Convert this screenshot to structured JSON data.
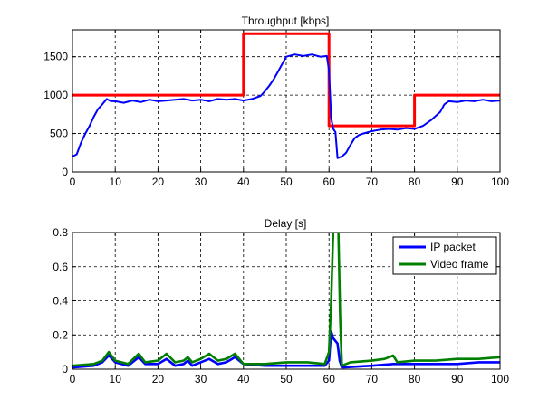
{
  "chart_data": [
    {
      "type": "line",
      "title": "Throughput [kbps]",
      "xlabel": "",
      "ylabel": "",
      "xlim": [
        0,
        100
      ],
      "ylim": [
        0,
        1850
      ],
      "xticks": [
        0,
        10,
        20,
        30,
        40,
        50,
        60,
        70,
        80,
        90,
        100
      ],
      "yticks": [
        0,
        500,
        1000,
        1500
      ],
      "grid": true,
      "legend": "none",
      "series": [
        {
          "color": "#ff0000",
          "style": "step",
          "x": [
            0,
            40,
            40,
            60,
            60,
            80,
            80,
            100
          ],
          "y": [
            1000,
            1000,
            1800,
            1800,
            600,
            600,
            1000,
            1000
          ]
        },
        {
          "color": "#0000ff",
          "style": "line",
          "x": [
            0,
            1,
            2,
            3,
            4,
            5,
            6,
            7,
            8,
            9,
            10,
            12,
            14,
            16,
            18,
            20,
            22,
            24,
            26,
            28,
            30,
            32,
            34,
            36,
            38,
            40,
            42,
            44,
            45,
            46,
            47,
            48,
            49,
            50,
            52,
            54,
            56,
            58,
            59.5,
            60,
            60.5,
            61,
            61.5,
            62,
            63,
            64,
            65,
            66,
            67,
            68,
            70,
            72,
            74,
            76,
            78,
            80,
            82,
            84,
            85,
            86,
            87,
            88,
            90,
            92,
            94,
            96,
            98,
            100
          ],
          "y": [
            200,
            230,
            380,
            500,
            600,
            720,
            820,
            880,
            950,
            920,
            920,
            900,
            930,
            910,
            940,
            920,
            930,
            940,
            950,
            930,
            940,
            920,
            950,
            940,
            950,
            930,
            950,
            990,
            1050,
            1120,
            1200,
            1300,
            1400,
            1500,
            1530,
            1510,
            1530,
            1500,
            1510,
            1320,
            700,
            560,
            520,
            180,
            200,
            250,
            350,
            440,
            480,
            500,
            530,
            550,
            560,
            550,
            570,
            560,
            600,
            680,
            730,
            780,
            880,
            920,
            910,
            930,
            920,
            940,
            920,
            930
          ]
        }
      ]
    },
    {
      "type": "line",
      "title": "Delay [s]",
      "xlabel": "",
      "ylabel": "",
      "xlim": [
        0,
        100
      ],
      "ylim": [
        0,
        0.8
      ],
      "xticks": [
        0,
        10,
        20,
        30,
        40,
        50,
        60,
        70,
        80,
        90,
        100
      ],
      "yticks": [
        0,
        0.2,
        0.4,
        0.6,
        0.8
      ],
      "grid": true,
      "legend": "top-right",
      "series": [
        {
          "name": "IP packet",
          "color": "#0000ff",
          "x": [
            0,
            5,
            7,
            8.5,
            10,
            13,
            15.5,
            17,
            20,
            22,
            24,
            26,
            27,
            28,
            30,
            32,
            34,
            36,
            38,
            40,
            45,
            50,
            55,
            59,
            60,
            60.5,
            61,
            62,
            62.5,
            63,
            70,
            75,
            80,
            90,
            95,
            100
          ],
          "y": [
            0.01,
            0.02,
            0.04,
            0.08,
            0.04,
            0.02,
            0.07,
            0.03,
            0.03,
            0.06,
            0.02,
            0.03,
            0.05,
            0.02,
            0.04,
            0.06,
            0.03,
            0.04,
            0.07,
            0.03,
            0.02,
            0.02,
            0.02,
            0.02,
            0.05,
            0.22,
            0.18,
            0.15,
            0.05,
            0.01,
            0.02,
            0.03,
            0.03,
            0.03,
            0.04,
            0.04
          ]
        },
        {
          "name": "Video frame",
          "color": "#008000",
          "x": [
            0,
            5,
            7,
            8.5,
            10,
            13,
            15.5,
            17,
            20,
            22,
            24,
            26,
            27,
            28,
            30,
            32,
            34,
            36,
            38,
            40,
            45,
            50,
            55,
            59,
            60,
            60.5,
            61,
            61.6,
            62.2,
            62.6,
            63,
            65,
            70,
            73,
            75,
            76,
            80,
            85,
            90,
            95,
            100
          ],
          "y": [
            0.02,
            0.03,
            0.05,
            0.1,
            0.05,
            0.03,
            0.09,
            0.04,
            0.05,
            0.09,
            0.04,
            0.05,
            0.07,
            0.04,
            0.06,
            0.09,
            0.05,
            0.06,
            0.09,
            0.03,
            0.03,
            0.04,
            0.04,
            0.03,
            0.1,
            0.4,
            0.82,
            0.82,
            0.8,
            0.3,
            0.02,
            0.04,
            0.05,
            0.06,
            0.08,
            0.04,
            0.05,
            0.05,
            0.06,
            0.06,
            0.07
          ]
        }
      ]
    }
  ]
}
